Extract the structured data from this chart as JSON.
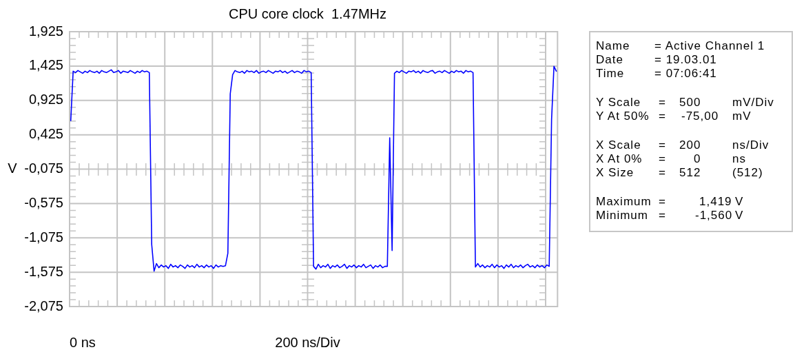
{
  "chart_data": [
    {
      "type": "line",
      "title": "CPU core clock  1.47MHz",
      "xlabel": "200 ns/Div",
      "ylabel": "V",
      "annotations": [
        "0 ns"
      ],
      "categories": [
        null,
        null,
        null,
        null,
        null,
        null,
        null,
        null,
        null,
        null,
        null,
        null,
        null,
        null,
        null,
        null,
        null,
        null,
        null,
        null,
        null,
        null,
        null,
        null,
        null,
        null,
        null,
        null,
        null,
        null,
        null,
        null,
        null,
        null,
        null,
        null,
        null,
        null,
        null,
        null,
        null,
        null,
        null,
        null,
        null,
        null,
        null,
        null,
        null,
        null,
        null,
        null,
        null,
        null,
        null,
        null,
        null,
        null,
        null,
        null,
        null,
        null,
        null,
        null,
        null,
        null,
        null,
        null,
        null,
        null,
        null,
        null,
        null,
        null,
        null,
        null,
        null,
        null,
        null,
        null,
        null,
        null,
        null,
        null,
        null,
        null,
        null,
        null,
        null,
        null,
        null,
        null,
        null,
        null,
        null,
        null,
        null,
        null,
        null,
        null,
        null,
        null,
        null,
        null,
        null,
        null,
        null,
        null,
        null,
        null,
        null,
        null,
        null,
        null,
        null,
        null,
        null,
        null,
        null,
        null,
        null,
        null,
        null,
        null,
        null,
        null,
        null,
        null,
        null,
        null,
        null,
        null,
        null,
        null,
        null,
        null,
        null,
        null,
        null,
        null,
        null,
        null,
        null,
        null,
        null,
        null,
        null,
        null,
        null,
        null,
        null,
        null,
        null,
        null,
        null,
        null,
        null,
        null,
        null,
        null,
        null,
        null,
        null,
        null,
        null,
        null,
        null,
        null,
        null,
        null,
        null,
        null,
        null,
        null,
        null,
        null,
        null,
        null,
        null,
        null,
        null,
        null,
        null,
        null,
        null,
        null,
        null,
        null,
        null,
        null,
        null,
        null,
        null,
        null,
        null,
        null,
        null,
        null,
        null,
        null,
        null,
        null,
        null,
        null,
        null
      ],
      "values": [
        0.63,
        1.35,
        1.33,
        1.36,
        1.34,
        1.32,
        1.35,
        1.33,
        1.36,
        1.34,
        1.33,
        1.35,
        1.32,
        1.36,
        1.34,
        1.33,
        1.35,
        1.37,
        1.33,
        1.34,
        1.36,
        1.32,
        1.35,
        1.34,
        1.33,
        1.36,
        1.34,
        1.32,
        1.35,
        1.33,
        1.36,
        1.34,
        1.35,
        1.33,
        -1.17,
        -1.56,
        -1.45,
        -1.51,
        -1.47,
        -1.5,
        -1.48,
        -1.52,
        -1.46,
        -1.5,
        -1.48,
        -1.51,
        -1.47,
        -1.49,
        -1.52,
        -1.47,
        -1.5,
        -1.48,
        -1.51,
        -1.46,
        -1.5,
        -1.48,
        -1.51,
        -1.47,
        -1.5,
        -1.48,
        -1.52,
        -1.47,
        -1.5,
        -1.48,
        -1.49,
        -1.48,
        -1.3,
        1.02,
        1.3,
        1.36,
        1.34,
        1.33,
        1.35,
        1.32,
        1.36,
        1.34,
        1.35,
        1.33,
        1.36,
        1.32,
        1.34,
        1.35,
        1.33,
        1.36,
        1.34,
        1.32,
        1.35,
        1.34,
        1.36,
        1.33,
        1.35,
        1.32,
        1.34,
        1.36,
        1.33,
        1.35,
        1.34,
        1.32,
        1.36,
        1.34,
        1.35,
        1.33,
        -1.49,
        -1.53,
        -1.46,
        -1.51,
        -1.48,
        -1.5,
        -1.46,
        -1.52,
        -1.48,
        -1.5,
        -1.47,
        -1.51,
        -1.49,
        -1.46,
        -1.52,
        -1.48,
        -1.5,
        -1.47,
        -1.51,
        -1.48,
        -1.5,
        -1.46,
        -1.51,
        -1.49,
        -1.47,
        -1.52,
        -1.48,
        -1.5,
        -1.47,
        -1.51,
        -1.49,
        -1.49,
        0.38,
        -1.26,
        1.32,
        1.35,
        1.33,
        1.36,
        1.34,
        1.32,
        1.35,
        1.34,
        1.36,
        1.33,
        1.35,
        1.32,
        1.36,
        1.34,
        1.33,
        1.35,
        1.36,
        1.32,
        1.34,
        1.35,
        1.33,
        1.36,
        1.34,
        1.32,
        1.35,
        1.33,
        1.36,
        1.34,
        1.35,
        1.32,
        1.36,
        1.34,
        1.35,
        1.33,
        -1.5,
        -1.45,
        -1.5,
        -1.47,
        -1.51,
        -1.48,
        -1.5,
        -1.46,
        -1.51,
        -1.47,
        -1.5,
        -1.48,
        -1.52,
        -1.47,
        -1.5,
        -1.46,
        -1.51,
        -1.48,
        -1.5,
        -1.47,
        -1.51,
        -1.48,
        -1.46,
        -1.5,
        -1.48,
        -1.51,
        -1.47,
        -1.5,
        -1.48,
        -1.51,
        -1.47,
        -1.49,
        0.65,
        1.42,
        1.35
      ],
      "color": "#0000ff",
      "ylim": [
        -2.075,
        1.925
      ],
      "yticks": [
        {
          "value": -2.075,
          "label": "-2,075"
        },
        {
          "value": -1.575,
          "label": "-1,575"
        },
        {
          "value": -1.075,
          "label": "-1,075"
        },
        {
          "value": -0.575,
          "label": "-0,575"
        },
        {
          "value": -0.075,
          "label": "-0,075"
        },
        {
          "value": 0.425,
          "label": "0,425"
        },
        {
          "value": 0.925,
          "label": "0,925"
        },
        {
          "value": 1.425,
          "label": "1,425"
        },
        {
          "value": 1.925,
          "label": "1,925"
        }
      ],
      "grid": true,
      "legend": false,
      "marker": "none",
      "line_style": "solid"
    },
    {
      "type": "other",
      "annotations": [
        "Name = Active Channel 1",
        "Date = 19.03.01",
        "Time = 07:06:41",
        "Y Scale = 500 mV/Div",
        "Y At 50% = -75,00 mV",
        "X Scale = 200 ns/Div",
        "X At 0% = 0 ns",
        "X Size = 512 (512)",
        "Maximum = 1,419 V",
        "Minimum = -1,560 V"
      ]
    }
  ]
}
